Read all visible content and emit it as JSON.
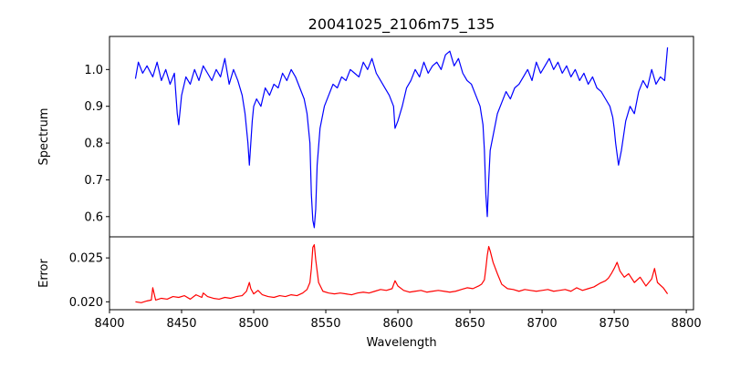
{
  "chart_data": [
    {
      "type": "line",
      "title": "20041025_2106m75_135",
      "xlabel": "",
      "ylabel": "Spectrum",
      "xlim": [
        8400,
        8805
      ],
      "ylim": [
        0.545,
        1.09
      ],
      "xticks": [
        8400,
        8450,
        8500,
        8550,
        8600,
        8650,
        8700,
        8750,
        8800
      ],
      "yticks": [
        0.6,
        0.7,
        0.8,
        0.9,
        1.0
      ],
      "ytick_labels": [
        "0.6",
        "0.7",
        "0.8",
        "0.9",
        "1.0"
      ],
      "grid": false,
      "series": [
        {
          "color": "#0000ff",
          "x": [
            8418,
            8420,
            8423,
            8426,
            8430,
            8433,
            8436,
            8439,
            8442,
            8445,
            8447,
            8448,
            8450,
            8453,
            8456,
            8459,
            8462,
            8465,
            8468,
            8471,
            8474,
            8477,
            8480,
            8483,
            8486,
            8489,
            8492,
            8494,
            8496,
            8497,
            8498,
            8499,
            8500,
            8502,
            8505,
            8508,
            8511,
            8514,
            8517,
            8520,
            8523,
            8526,
            8529,
            8532,
            8535,
            8537,
            8539,
            8540,
            8541,
            8542,
            8543,
            8544,
            8546,
            8549,
            8552,
            8555,
            8558,
            8561,
            8564,
            8567,
            8570,
            8573,
            8576,
            8579,
            8582,
            8585,
            8588,
            8591,
            8594,
            8597,
            8598,
            8600,
            8603,
            8606,
            8609,
            8612,
            8615,
            8618,
            8621,
            8624,
            8627,
            8630,
            8633,
            8636,
            8639,
            8642,
            8645,
            8648,
            8651,
            8654,
            8657,
            8659,
            8660,
            8661,
            8662,
            8663,
            8664,
            8666,
            8669,
            8672,
            8675,
            8678,
            8681,
            8684,
            8687,
            8690,
            8693,
            8696,
            8699,
            8702,
            8705,
            8708,
            8711,
            8714,
            8717,
            8720,
            8723,
            8726,
            8729,
            8732,
            8735,
            8738,
            8741,
            8744,
            8747,
            8749,
            8750,
            8751,
            8752,
            8753,
            8755,
            8758,
            8761,
            8764,
            8767,
            8770,
            8773,
            8776,
            8779,
            8782,
            8785,
            8787
          ],
          "y": [
            0.975,
            1.02,
            0.99,
            1.01,
            0.98,
            1.02,
            0.97,
            1.0,
            0.96,
            0.99,
            0.88,
            0.85,
            0.93,
            0.98,
            0.96,
            1.0,
            0.97,
            1.01,
            0.99,
            0.97,
            1.0,
            0.98,
            1.03,
            0.96,
            1.0,
            0.97,
            0.93,
            0.88,
            0.8,
            0.74,
            0.8,
            0.86,
            0.9,
            0.92,
            0.9,
            0.95,
            0.93,
            0.96,
            0.95,
            0.99,
            0.97,
            1.0,
            0.98,
            0.95,
            0.92,
            0.88,
            0.8,
            0.66,
            0.59,
            0.57,
            0.62,
            0.74,
            0.84,
            0.9,
            0.93,
            0.96,
            0.95,
            0.98,
            0.97,
            1.0,
            0.99,
            0.98,
            1.02,
            1.0,
            1.03,
            0.99,
            0.97,
            0.95,
            0.93,
            0.9,
            0.84,
            0.86,
            0.9,
            0.95,
            0.97,
            1.0,
            0.98,
            1.02,
            0.99,
            1.01,
            1.02,
            1.0,
            1.04,
            1.05,
            1.01,
            1.03,
            0.99,
            0.97,
            0.96,
            0.93,
            0.9,
            0.85,
            0.78,
            0.66,
            0.6,
            0.7,
            0.78,
            0.82,
            0.88,
            0.91,
            0.94,
            0.92,
            0.95,
            0.96,
            0.98,
            1.0,
            0.97,
            1.02,
            0.99,
            1.01,
            1.03,
            1.0,
            1.02,
            0.99,
            1.01,
            0.98,
            1.0,
            0.97,
            0.99,
            0.96,
            0.98,
            0.95,
            0.94,
            0.92,
            0.9,
            0.87,
            0.84,
            0.8,
            0.77,
            0.74,
            0.78,
            0.86,
            0.9,
            0.88,
            0.94,
            0.97,
            0.95,
            1.0,
            0.96,
            0.98,
            0.97,
            1.06
          ]
        }
      ]
    },
    {
      "type": "line",
      "title": "",
      "xlabel": "Wavelength",
      "ylabel": "Error",
      "xlim": [
        8400,
        8805
      ],
      "ylim": [
        0.0191,
        0.0274
      ],
      "xticks": [
        8400,
        8450,
        8500,
        8550,
        8600,
        8650,
        8700,
        8750,
        8800
      ],
      "yticks": [
        0.02,
        0.025
      ],
      "ytick_labels": [
        "0.020",
        "0.025"
      ],
      "grid": false,
      "series": [
        {
          "color": "#ff0000",
          "x": [
            8418,
            8422,
            8426,
            8429,
            8430,
            8432,
            8436,
            8440,
            8444,
            8448,
            8452,
            8456,
            8460,
            8464,
            8465,
            8468,
            8472,
            8476,
            8480,
            8484,
            8488,
            8492,
            8495,
            8497,
            8498,
            8500,
            8503,
            8506,
            8510,
            8514,
            8518,
            8522,
            8526,
            8530,
            8534,
            8537,
            8539,
            8540,
            8541,
            8542,
            8543,
            8545,
            8548,
            8552,
            8556,
            8560,
            8564,
            8568,
            8572,
            8576,
            8580,
            8584,
            8588,
            8592,
            8596,
            8598,
            8600,
            8604,
            8608,
            8612,
            8616,
            8620,
            8624,
            8628,
            8632,
            8636,
            8640,
            8644,
            8648,
            8652,
            8656,
            8658,
            8660,
            8661,
            8662,
            8663,
            8664,
            8666,
            8669,
            8672,
            8676,
            8680,
            8684,
            8688,
            8692,
            8696,
            8700,
            8704,
            8708,
            8712,
            8716,
            8720,
            8724,
            8728,
            8732,
            8736,
            8740,
            8744,
            8746,
            8748,
            8750,
            8752,
            8754,
            8757,
            8760,
            8764,
            8768,
            8772,
            8776,
            8778,
            8780,
            8784,
            8787
          ],
          "y": [
            0.02,
            0.0199,
            0.0201,
            0.0202,
            0.0216,
            0.0202,
            0.0204,
            0.0203,
            0.0206,
            0.0205,
            0.0207,
            0.0203,
            0.0208,
            0.0205,
            0.021,
            0.0206,
            0.0204,
            0.0203,
            0.0205,
            0.0204,
            0.0206,
            0.0207,
            0.0212,
            0.0222,
            0.0215,
            0.0209,
            0.0213,
            0.0208,
            0.0206,
            0.0205,
            0.0207,
            0.0206,
            0.0208,
            0.0207,
            0.021,
            0.0214,
            0.0222,
            0.0238,
            0.0262,
            0.0265,
            0.0248,
            0.0222,
            0.0212,
            0.021,
            0.0209,
            0.021,
            0.0209,
            0.0208,
            0.021,
            0.0211,
            0.021,
            0.0212,
            0.0214,
            0.0213,
            0.0215,
            0.0224,
            0.0218,
            0.0213,
            0.0211,
            0.0212,
            0.0213,
            0.0211,
            0.0212,
            0.0213,
            0.0212,
            0.0211,
            0.0212,
            0.0214,
            0.0216,
            0.0215,
            0.0218,
            0.022,
            0.0225,
            0.0238,
            0.0253,
            0.0263,
            0.0258,
            0.0245,
            0.0232,
            0.022,
            0.0215,
            0.0214,
            0.0212,
            0.0214,
            0.0213,
            0.0212,
            0.0213,
            0.0214,
            0.0212,
            0.0213,
            0.0214,
            0.0212,
            0.0216,
            0.0213,
            0.0215,
            0.0217,
            0.0221,
            0.0224,
            0.0227,
            0.0232,
            0.0238,
            0.0245,
            0.0235,
            0.0228,
            0.0232,
            0.0222,
            0.0228,
            0.0218,
            0.0226,
            0.0238,
            0.0222,
            0.0216,
            0.0209
          ]
        }
      ]
    }
  ]
}
